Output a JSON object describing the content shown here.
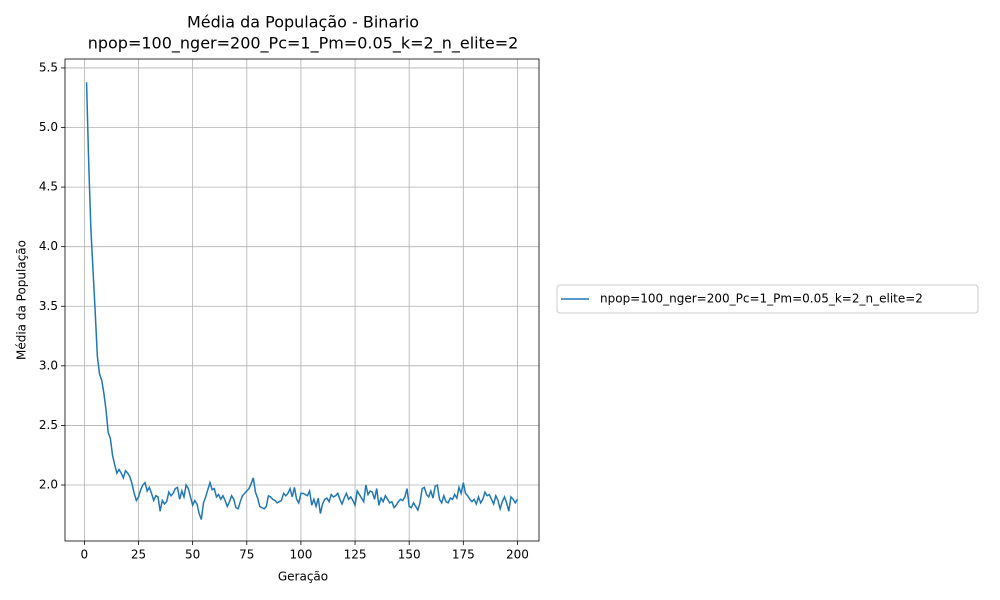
{
  "chart_data": {
    "type": "line",
    "title": "Média da População - Binario",
    "subtitle": "npop=100_nger=200_Pc=1_Pm=0.05_k=2_n_elite=2",
    "xlabel": "Geração",
    "ylabel": "Média da População",
    "x": [
      1,
      2,
      3,
      4,
      5,
      6,
      7,
      8,
      9,
      10,
      11,
      12,
      13,
      14,
      15,
      16,
      17,
      18,
      19,
      20,
      21,
      22,
      23,
      24,
      25,
      26,
      27,
      28,
      29,
      30,
      31,
      32,
      33,
      34,
      35,
      36,
      37,
      38,
      39,
      40,
      41,
      42,
      43,
      44,
      45,
      46,
      47,
      48,
      49,
      50,
      51,
      52,
      53,
      54,
      55,
      56,
      57,
      58,
      59,
      60,
      61,
      62,
      63,
      64,
      65,
      66,
      67,
      68,
      69,
      70,
      71,
      72,
      73,
      74,
      75,
      76,
      77,
      78,
      79,
      80,
      81,
      82,
      83,
      84,
      85,
      86,
      87,
      88,
      89,
      90,
      91,
      92,
      93,
      94,
      95,
      96,
      97,
      98,
      99,
      100,
      101,
      102,
      103,
      104,
      105,
      106,
      107,
      108,
      109,
      110,
      111,
      112,
      113,
      114,
      115,
      116,
      117,
      118,
      119,
      120,
      121,
      122,
      123,
      124,
      125,
      126,
      127,
      128,
      129,
      130,
      131,
      132,
      133,
      134,
      135,
      136,
      137,
      138,
      139,
      140,
      141,
      142,
      143,
      144,
      145,
      146,
      147,
      148,
      149,
      150,
      151,
      152,
      153,
      154,
      155,
      156,
      157,
      158,
      159,
      160,
      161,
      162,
      163,
      164,
      165,
      166,
      167,
      168,
      169,
      170,
      171,
      172,
      173,
      174,
      175,
      176,
      177,
      178,
      179,
      180,
      181,
      182,
      183,
      184,
      185,
      186,
      187,
      188,
      189,
      190,
      191,
      192,
      193,
      194,
      195,
      196,
      197,
      198,
      199,
      200
    ],
    "series": [
      {
        "name": "npop=100_nger=200_Pc=1_Pm=0.05_k=2_n_elite=2",
        "color": "#1f77b4",
        "values": [
          5.38,
          4.7,
          4.15,
          3.8,
          3.45,
          3.08,
          2.93,
          2.88,
          2.77,
          2.63,
          2.44,
          2.39,
          2.25,
          2.17,
          2.1,
          2.13,
          2.1,
          2.06,
          2.12,
          2.1,
          2.07,
          2.01,
          1.93,
          1.87,
          1.9,
          1.96,
          2.0,
          2.02,
          1.95,
          1.98,
          1.93,
          1.87,
          1.91,
          1.9,
          1.78,
          1.87,
          1.84,
          1.86,
          1.94,
          1.91,
          1.93,
          1.97,
          1.98,
          1.88,
          1.95,
          1.9,
          2.0,
          1.97,
          1.9,
          1.83,
          1.87,
          1.84,
          1.76,
          1.71,
          1.85,
          1.9,
          1.96,
          2.02,
          1.96,
          1.97,
          1.9,
          1.92,
          1.88,
          1.91,
          1.87,
          1.82,
          1.86,
          1.91,
          1.88,
          1.81,
          1.8,
          1.86,
          1.91,
          1.93,
          1.95,
          1.97,
          2.01,
          2.06,
          1.94,
          1.89,
          1.82,
          1.81,
          1.8,
          1.82,
          1.91,
          1.9,
          1.88,
          1.87,
          1.85,
          1.86,
          1.87,
          1.93,
          1.91,
          1.93,
          1.97,
          1.9,
          1.98,
          1.88,
          1.85,
          1.93,
          1.93,
          1.92,
          1.91,
          1.95,
          1.83,
          1.88,
          1.82,
          1.89,
          1.76,
          1.84,
          1.88,
          1.89,
          1.86,
          1.92,
          1.9,
          1.91,
          1.93,
          1.88,
          1.84,
          1.89,
          1.93,
          1.88,
          1.9,
          1.87,
          1.83,
          1.95,
          1.92,
          1.89,
          1.86,
          2.0,
          1.92,
          1.95,
          1.94,
          1.88,
          1.97,
          1.83,
          1.89,
          1.86,
          1.91,
          1.88,
          1.85,
          1.86,
          1.81,
          1.83,
          1.86,
          1.88,
          1.87,
          1.9,
          1.97,
          1.82,
          1.81,
          1.85,
          1.82,
          1.79,
          1.85,
          1.97,
          1.98,
          1.92,
          1.9,
          1.95,
          1.89,
          1.99,
          2.0,
          1.88,
          1.85,
          1.91,
          1.86,
          1.85,
          1.89,
          1.88,
          1.92,
          1.89,
          1.98,
          1.93,
          2.02,
          1.93,
          1.91,
          1.88,
          1.86,
          1.88,
          1.84,
          1.9,
          1.85,
          1.88,
          1.94,
          1.91,
          1.92,
          1.88,
          1.84,
          1.91,
          1.87,
          1.8,
          1.86,
          1.9,
          1.85,
          1.78,
          1.9,
          1.88,
          1.85,
          1.88
        ]
      }
    ],
    "xlim": [
      -8.95,
      209.95
    ],
    "ylim": [
      1.53,
      5.575
    ],
    "xticks": [
      0,
      25,
      50,
      75,
      100,
      125,
      150,
      175,
      200
    ],
    "yticks": [
      {
        "value": 2,
        "label": "2.0"
      },
      2.5,
      {
        "value": 3,
        "label": "3.0"
      },
      3.5,
      {
        "value": 4,
        "label": "4.0"
      },
      4.5,
      {
        "value": 5,
        "label": "5.0"
      },
      5.5
    ],
    "grid": true,
    "legend": "right"
  }
}
